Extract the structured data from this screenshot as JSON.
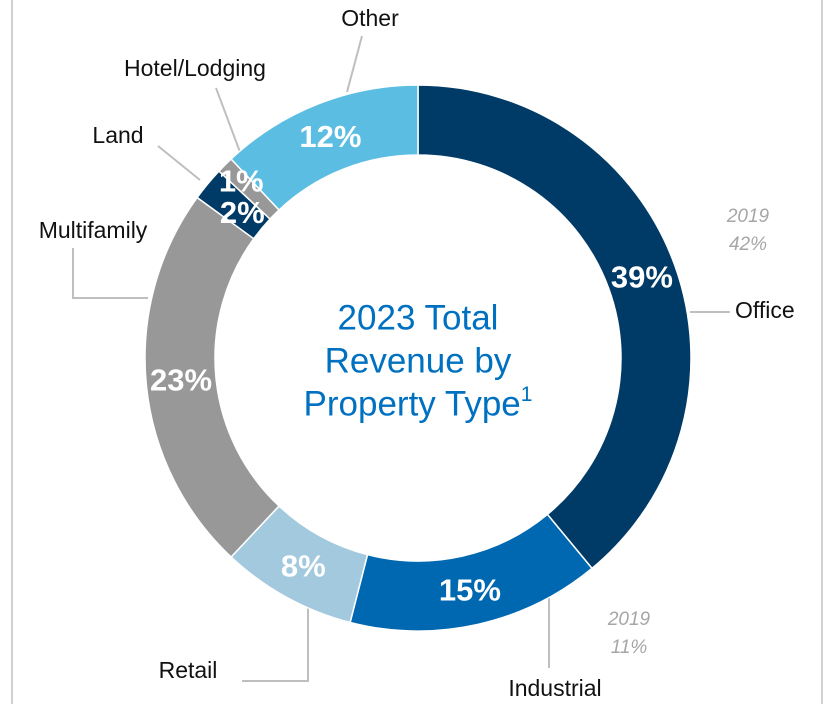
{
  "chart_data": {
    "type": "donut",
    "title": [
      "2023 Total",
      "Revenue by",
      "Property Type"
    ],
    "title_footnote": "1",
    "categories": [
      "Office",
      "Industrial",
      "Retail",
      "Multifamily",
      "Land",
      "Hotel/Lodging",
      "Other"
    ],
    "values": [
      39,
      15,
      8,
      23,
      2,
      1,
      12
    ],
    "value_labels": [
      "39%",
      "15%",
      "8%",
      "23%",
      "2%",
      "1%",
      "12%"
    ],
    "colors": [
      "#003a66",
      "#0068b0",
      "#a3c9de",
      "#989898",
      "#003a66",
      "#989898",
      "#5bbde2"
    ],
    "annotations": [
      [
        "2019",
        "42%"
      ],
      [
        "2019",
        "11%"
      ]
    ]
  }
}
